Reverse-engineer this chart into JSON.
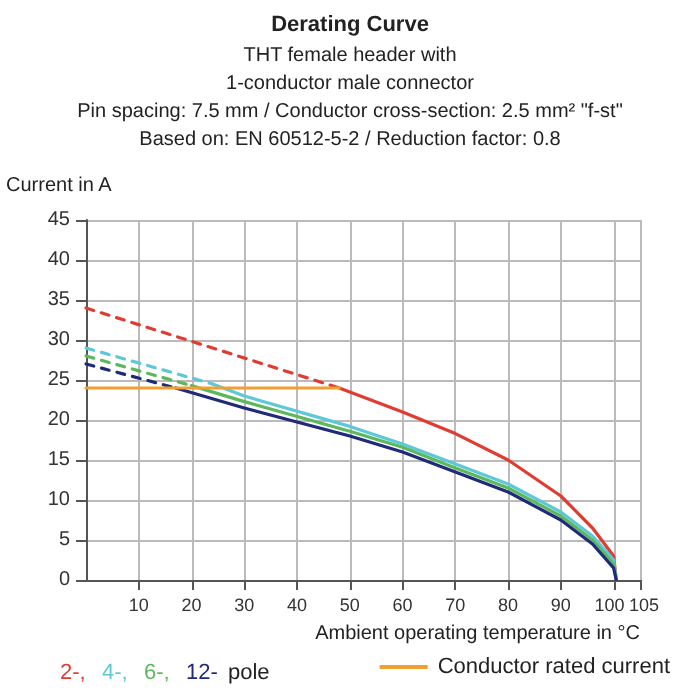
{
  "chart_data": {
    "type": "line",
    "title": "Derating Curve",
    "subtitle": "THT female header with\n1-conductor male connector\nPin spacing: 7.5 mm / Conductor cross-section: 2.5 mm² \"f-st\"\nBased on: EN 60512-5-2 / Reduction factor: 0.8",
    "xlabel": "Ambient operating temperature in °C",
    "ylabel": "Current in A",
    "legend_title": "pole",
    "xlim": [
      0,
      105
    ],
    "xticks": [
      10,
      20,
      30,
      40,
      50,
      60,
      70,
      80,
      90,
      100,
      105
    ],
    "ylim": [
      0,
      45
    ],
    "yticks": [
      0,
      5,
      10,
      15,
      20,
      25,
      30,
      35,
      40,
      45
    ],
    "grid": true,
    "legend": "bottom",
    "marker": "none",
    "series": [
      {
        "color": "#e03c31",
        "line_style": "dashed",
        "x": [
          0,
          48
        ],
        "values": [
          34,
          24
        ]
      },
      {
        "color": "#5ec8d8",
        "line_style": "dashed",
        "x": [
          0,
          24
        ],
        "values": [
          29,
          24.5
        ]
      },
      {
        "color": "#5cb85c",
        "line_style": "dashed",
        "x": [
          0,
          20
        ],
        "values": [
          28,
          24.3
        ]
      },
      {
        "color": "#1f2a7a",
        "line_style": "dashed",
        "x": [
          0,
          17
        ],
        "values": [
          27,
          24
        ]
      },
      {
        "name": "2-,",
        "color": "#e03c31",
        "line_style": "solid",
        "x": [
          48,
          60,
          70,
          80,
          90,
          96,
          100,
          100.5
        ],
        "values": [
          24,
          21,
          18.3,
          15,
          10.5,
          6.5,
          3,
          0
        ]
      },
      {
        "name": "4-,",
        "color": "#5ec8d8",
        "line_style": "solid",
        "x": [
          24,
          30,
          50,
          60,
          70,
          80,
          90,
          96,
          100,
          100.5
        ],
        "values": [
          24.5,
          23,
          19.2,
          17,
          14.5,
          12,
          8.5,
          5.5,
          2.5,
          0
        ]
      },
      {
        "name": "6-,",
        "color": "#5cb85c",
        "line_style": "solid",
        "x": [
          20,
          30,
          50,
          60,
          70,
          80,
          90,
          96,
          100,
          100.5
        ],
        "values": [
          24.3,
          22.3,
          18.6,
          16.6,
          14,
          11.5,
          8,
          5,
          2,
          0
        ]
      },
      {
        "name": "12-",
        "color": "#1f2a7a",
        "line_style": "solid",
        "x": [
          17,
          30,
          50,
          60,
          70,
          80,
          90,
          96,
          100,
          100.5
        ],
        "values": [
          24,
          21.5,
          18,
          16,
          13.5,
          11,
          7.5,
          4.5,
          1.5,
          0
        ]
      },
      {
        "name": "Conductor rated current",
        "color": "#f0a030",
        "line_style": "solid",
        "x": [
          0,
          48
        ],
        "values": [
          24,
          24
        ]
      }
    ]
  }
}
